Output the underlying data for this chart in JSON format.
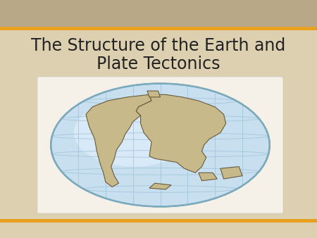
{
  "title_line1": "The Structure of the Earth and",
  "title_line2": "Plate Tectonics",
  "title_fontsize": 17,
  "title_color": "#222222",
  "bg_color": "#ddd0b0",
  "header_photo_color": "#b8a888",
  "header_stripe_color": "#e8a020",
  "footer_stripe_color": "#e8a020",
  "footer_bg_color": "#ddd0b0",
  "globe_ocean_color": "#c8dff0",
  "globe_ocean_inner_color": "#e8f4ff",
  "globe_land_color": "#c8b98a",
  "globe_border_color": "#6a5a3a",
  "globe_grid_color": "#a0c4d8",
  "globe_outline_color": "#7aaabb",
  "white_box_color": "#f5f0e8"
}
